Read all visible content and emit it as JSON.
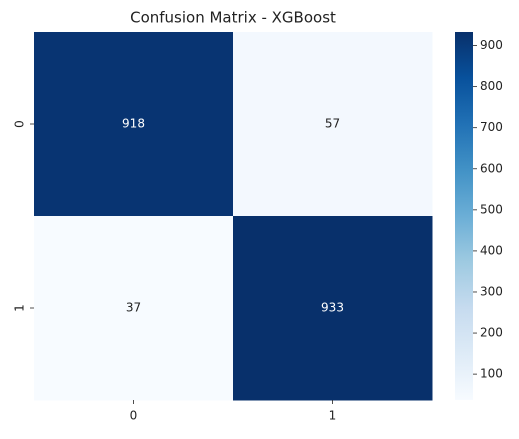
{
  "chart_data": {
    "type": "heatmap",
    "title": "Confusion Matrix - XGBoost",
    "x_categories": [
      "0",
      "1"
    ],
    "y_categories": [
      "0",
      "1"
    ],
    "values": [
      [
        918,
        57
      ],
      [
        37,
        933
      ]
    ],
    "colormap": [
      "#f7fbff",
      "#deebf7",
      "#c6dbef",
      "#9ecae1",
      "#6baed6",
      "#4292c6",
      "#2171b5",
      "#08519c",
      "#08306b"
    ],
    "clim": [
      37,
      933
    ],
    "cticks": [
      100,
      200,
      300,
      400,
      500,
      600,
      700,
      800,
      900
    ]
  }
}
